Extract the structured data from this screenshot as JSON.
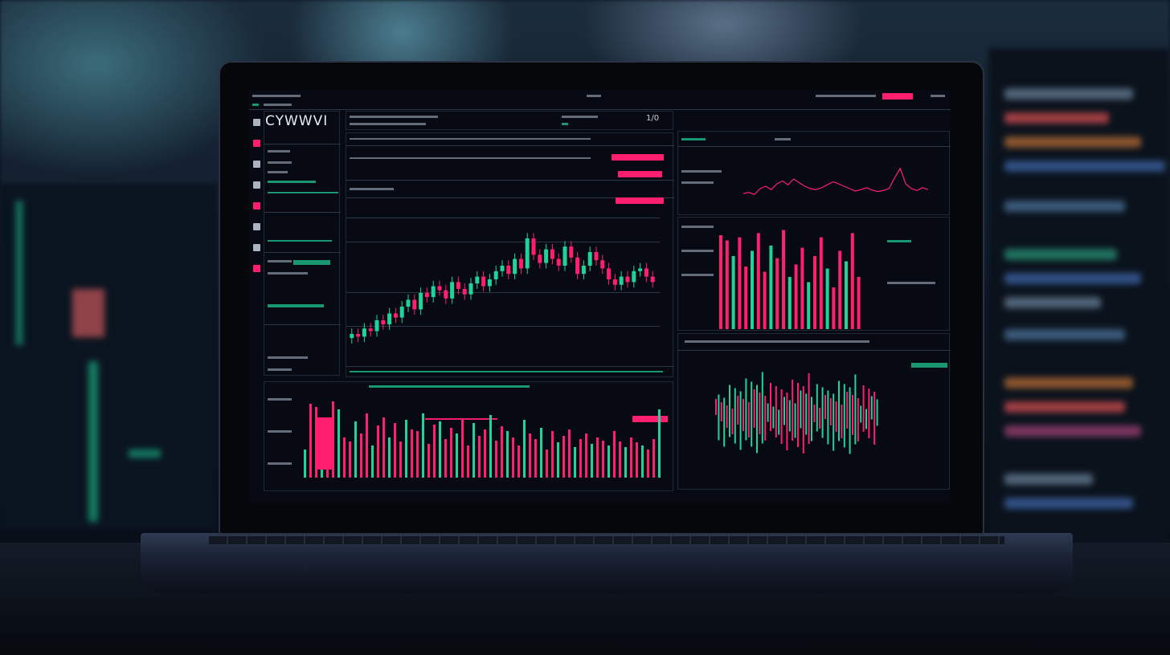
{
  "app": {
    "brand": "CYWWVI",
    "ratio": "1/0"
  },
  "colors": {
    "up": "#1fd39a",
    "down": "#ff1f6e",
    "panel_bg": "#070a12",
    "border": "#1e2a3a"
  },
  "sidebar": {
    "icons": [
      "menu-icon",
      "chart-icon",
      "list-icon",
      "wallet-icon",
      "settings-icon",
      "portfolio-icon",
      "document-icon",
      "alert-icon"
    ]
  },
  "main_chart": {
    "type": "candlestick",
    "closes": [
      20,
      18,
      24,
      22,
      30,
      27,
      35,
      32,
      40,
      45,
      38,
      50,
      47,
      55,
      52,
      46,
      58,
      53,
      49,
      57,
      62,
      55,
      60,
      66,
      70,
      64,
      75,
      68,
      90,
      78,
      72,
      82,
      75,
      70,
      84,
      76,
      64,
      70,
      80,
      74,
      68,
      60,
      56,
      62,
      58,
      66,
      68,
      62,
      58
    ]
  },
  "volume_bars": [
    35,
    92,
    88,
    40,
    60,
    95,
    85,
    50,
    45,
    70,
    55,
    80,
    40,
    65,
    75,
    50,
    68,
    45,
    72,
    60,
    58,
    80,
    42,
    66,
    70,
    48,
    62,
    55,
    74,
    40,
    68,
    52,
    60,
    78,
    46,
    64,
    58,
    50,
    40,
    72,
    55,
    48,
    62,
    35,
    58,
    44,
    52,
    60,
    38,
    48,
    55,
    42,
    50,
    46,
    40,
    58,
    45,
    38,
    50,
    44,
    40,
    35,
    48,
    85
  ],
  "right_bars": [
    90,
    85,
    70,
    88,
    60,
    75,
    92,
    55,
    80,
    68,
    95,
    50,
    62,
    78,
    45,
    70,
    88,
    58,
    40,
    75,
    65,
    92,
    50
  ],
  "right_line": [
    40,
    42,
    38,
    50,
    55,
    48,
    60,
    66,
    58,
    70,
    62,
    55,
    50,
    48,
    52,
    58,
    64,
    60,
    55,
    50,
    45,
    48,
    52,
    47,
    44,
    46,
    50,
    72,
    92,
    60,
    50,
    46,
    52,
    48
  ]
}
